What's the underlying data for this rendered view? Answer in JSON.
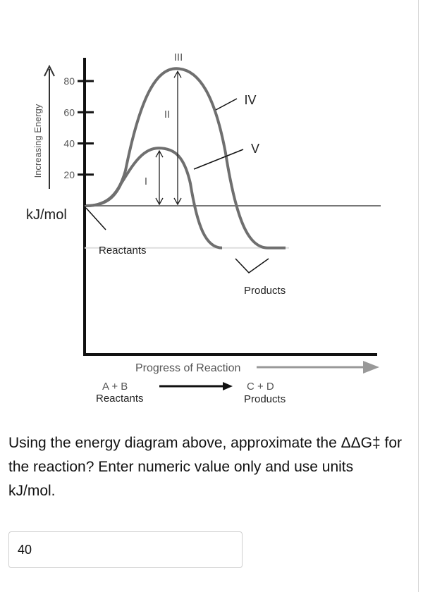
{
  "chart_data": {
    "type": "line",
    "ylabel": "Increasing Energy",
    "yunit": "kJ/mol",
    "yticks": [
      20,
      40,
      60,
      80
    ],
    "ylim": [
      0,
      90
    ],
    "xlabel": "Progress of Reaction",
    "reactant_level": 0,
    "product_level": -27,
    "curves": [
      {
        "peak": 88
      },
      {
        "peak": 37
      }
    ],
    "roman_labels": [
      "I",
      "II",
      "III",
      "IV",
      "V"
    ],
    "annotations": {
      "reactants": "Reactants",
      "products": "Products"
    },
    "equation": {
      "left_species": "A + B",
      "left_label": "Reactants",
      "right_species": "C + D",
      "right_label": "Products"
    }
  },
  "question": {
    "text": "Using the energy diagram above, approximate the ΔΔG‡ for the reaction? Enter numeric value only and use units kJ/mol."
  },
  "answer": {
    "value": "40"
  }
}
